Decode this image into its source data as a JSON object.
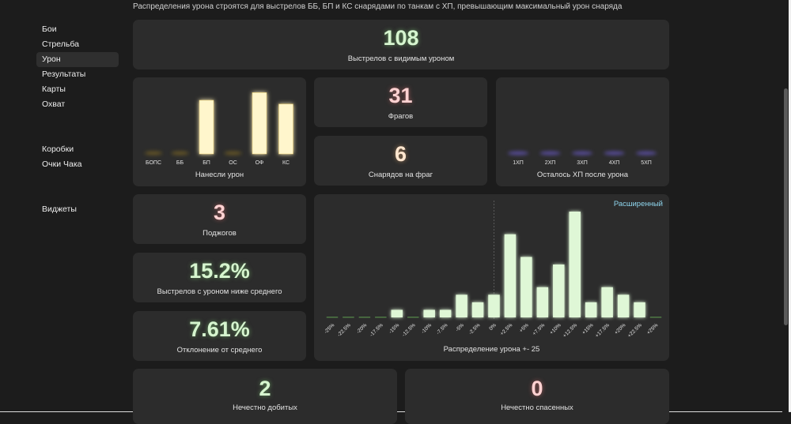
{
  "top_note": "Распределения урона строятся для выстрелов ББ, БП и КС снарядами по танкам с ХП, превышающим максимальный урон снаряда",
  "sidebar": {
    "items": [
      {
        "label": "Бои",
        "active": false
      },
      {
        "label": "Стрельба",
        "active": false
      },
      {
        "label": "Урон",
        "active": true
      },
      {
        "label": "Результаты",
        "active": false
      },
      {
        "label": "Карты",
        "active": false
      },
      {
        "label": "Охват",
        "active": false
      }
    ],
    "items2": [
      {
        "label": "Коробки"
      },
      {
        "label": "Очки Чака"
      }
    ],
    "items3": [
      {
        "label": "Виджеты"
      }
    ]
  },
  "cards": {
    "visible_damage": {
      "value": "108",
      "label": "Выстрелов с видимым уроном"
    },
    "frags": {
      "value": "31",
      "label": "Фрагов"
    },
    "shells_per_frag": {
      "value": "6",
      "label": "Снарядов на фраг"
    },
    "fires": {
      "value": "3",
      "label": "Поджогов"
    },
    "below_avg": {
      "value": "15.2%",
      "label": "Выстрелов с уроном ниже среднего"
    },
    "deviation": {
      "value": "7.61%",
      "label": "Отклонение от среднего"
    },
    "unfair_finished": {
      "value": "2",
      "label": "Нечестно добитых"
    },
    "unfair_saved": {
      "value": "0",
      "label": "Нечестно спасенных"
    }
  },
  "extended_link": "Расширенный",
  "colors": {
    "bar_yellow": "#fff6cc",
    "bar_green": "#dff7d6",
    "bar_purple": "#6a5ac8",
    "card_bg": "#2c2c2c",
    "page_bg": "#1c1c1c",
    "link": "#8fd6ee"
  },
  "chart_data": [
    {
      "type": "bar",
      "title": "Нанесли урон",
      "categories": [
        "БОПС",
        "ББ",
        "БП",
        "ОС",
        "ОФ",
        "КС"
      ],
      "values": [
        0,
        0,
        42,
        0,
        48,
        39
      ],
      "ylim": [
        0,
        50
      ],
      "grid": false
    },
    {
      "type": "bar",
      "title": "Осталось ХП после урона",
      "categories": [
        "1ХП",
        "2ХП",
        "3ХП",
        "4ХП",
        "5ХП"
      ],
      "values": [
        0,
        0,
        0,
        0,
        0
      ],
      "ylim": [
        0,
        10
      ],
      "grid": false
    },
    {
      "type": "bar",
      "title": "Распределение урона +- 25",
      "categories": [
        "-25%",
        "-22.5%",
        "-20%",
        "-17.5%",
        "-15%",
        "-12.5%",
        "-10%",
        "-7.5%",
        "-5%",
        "-2.5%",
        "0%",
        "+2.5%",
        "+5%",
        "+7.5%",
        "+10%",
        "+12.5%",
        "+15%",
        "+17.5%",
        "+20%",
        "+22.5%",
        "+25%"
      ],
      "values": [
        0,
        0,
        0,
        0,
        1,
        0,
        1,
        1,
        3,
        2,
        3,
        11,
        8,
        4,
        7,
        14,
        2,
        4,
        3,
        2,
        0
      ],
      "ylim": [
        0,
        14
      ],
      "grid": false
    }
  ]
}
